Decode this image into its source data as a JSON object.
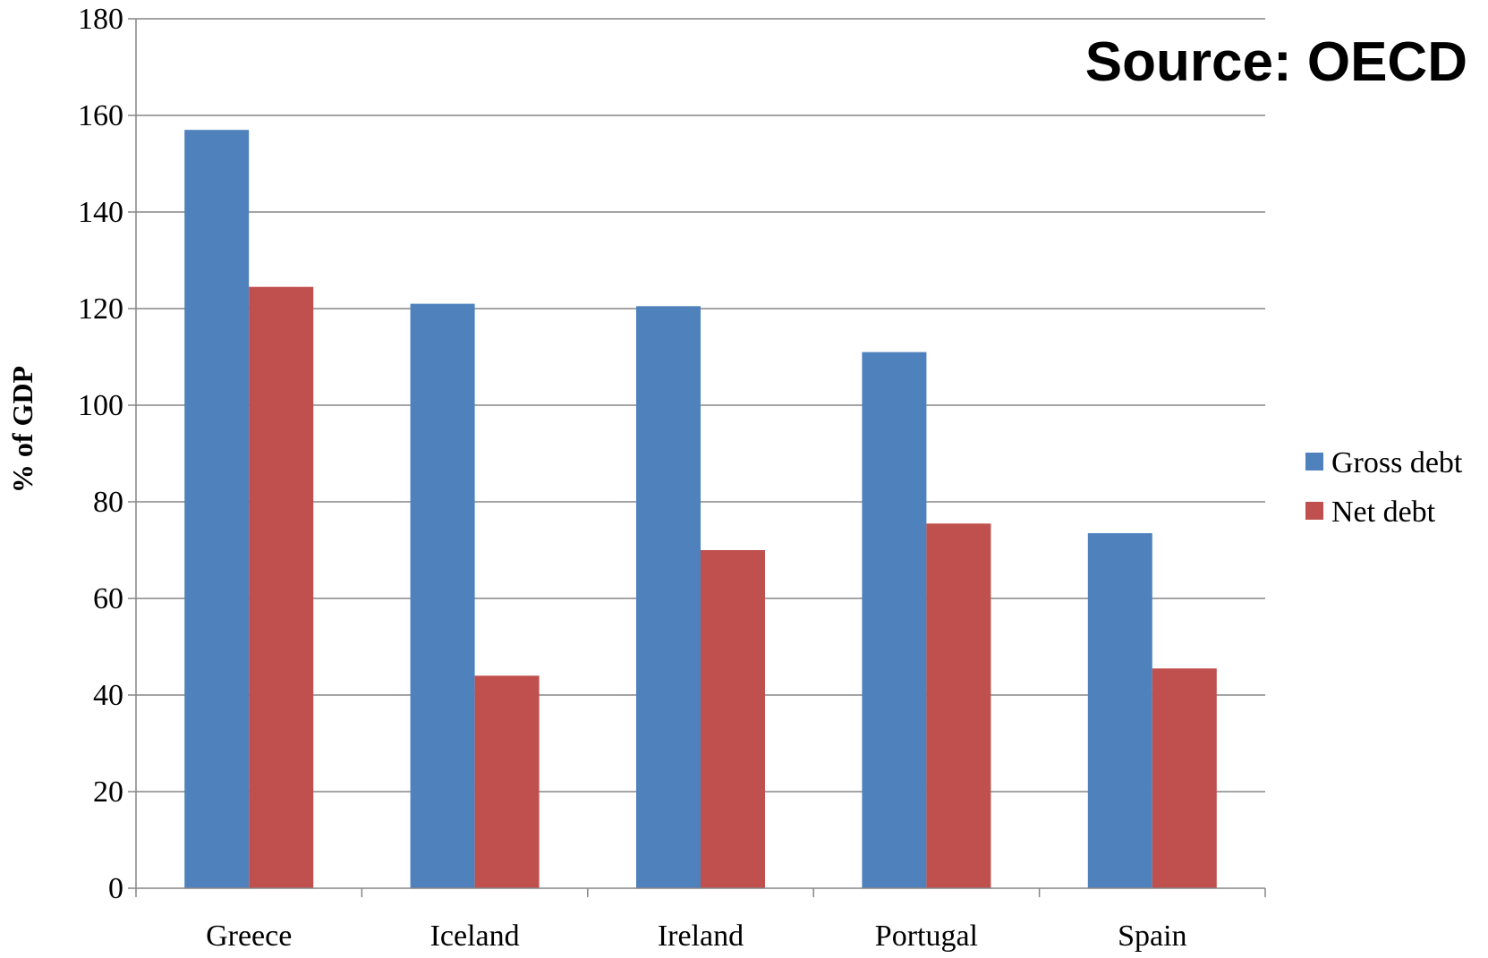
{
  "chart_data": {
    "type": "bar",
    "categories": [
      "Greece",
      "Iceland",
      "Ireland",
      "Portugal",
      "Spain"
    ],
    "series": [
      {
        "name": "Gross debt",
        "values": [
          157,
          121,
          120.5,
          111,
          73.5
        ],
        "color": "#4F81BD"
      },
      {
        "name": "Net debt",
        "values": [
          124.5,
          44,
          70,
          75.5,
          45.5
        ],
        "color": "#C0504D"
      }
    ],
    "ylabel": "% of GDP",
    "ylim": [
      0,
      180
    ],
    "yticks": [
      0,
      20,
      40,
      60,
      80,
      100,
      120,
      140,
      160,
      180
    ],
    "grid": true,
    "legend_position": "right",
    "annotation": "Source: OECD"
  }
}
